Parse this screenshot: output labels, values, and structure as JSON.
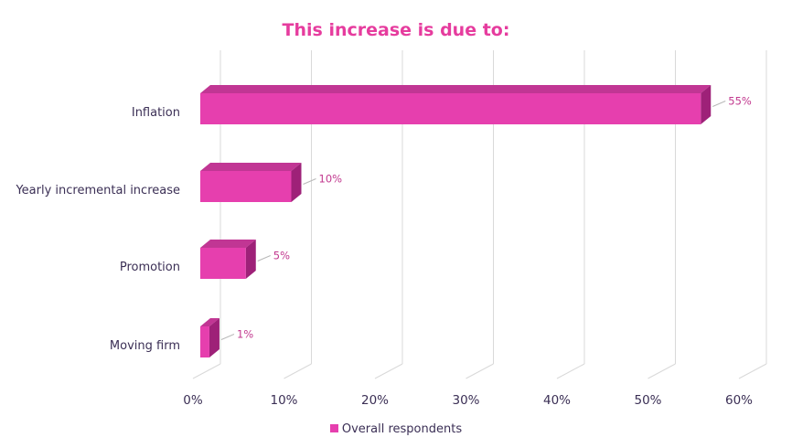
{
  "chart_data": {
    "type": "bar",
    "orientation": "horizontal",
    "title": "This increase is due to:",
    "categories": [
      "Inflation",
      "Yearly incremental increase",
      "Promotion",
      "Moving firm"
    ],
    "series": [
      {
        "name": "Overall respondents",
        "values": [
          55,
          10,
          5,
          1
        ],
        "color": "#e63fae"
      }
    ],
    "value_labels": [
      "55%",
      "10%",
      "5%",
      "1%"
    ],
    "xlim": [
      0,
      60
    ],
    "x_ticks": [
      "0%",
      "10%",
      "20%",
      "30%",
      "40%",
      "50%",
      "60%"
    ],
    "grid": true,
    "legend_position": "bottom"
  },
  "colors": {
    "title": "#e63c9e",
    "bar_front": "#e63fae",
    "bar_top": "#c13694",
    "bar_side": "#9e2178",
    "text": "#3b2f55",
    "data_label": "#c2398f",
    "grid": "#d9d9d9"
  }
}
